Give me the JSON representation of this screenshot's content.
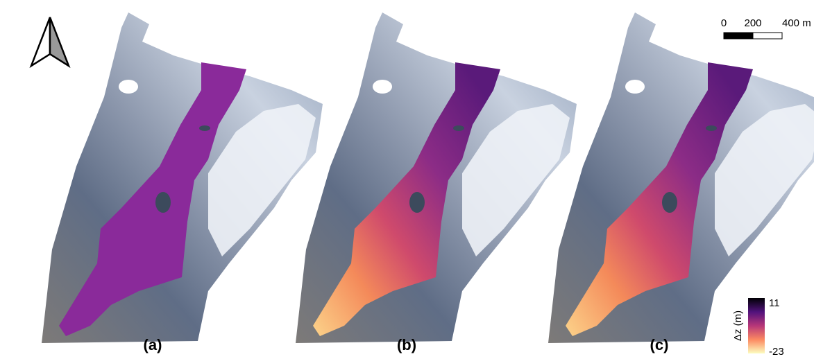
{
  "panels": [
    {
      "label": "(a)",
      "map": "uniform"
    },
    {
      "label": "(b)",
      "map": "gradient"
    },
    {
      "label": "(c)",
      "map": "gradient"
    }
  ],
  "scale_bar": {
    "ticks": [
      "0",
      "200",
      "400 m"
    ]
  },
  "colorbar": {
    "label": "Δz (m)",
    "max": 11,
    "min": -23
  }
}
